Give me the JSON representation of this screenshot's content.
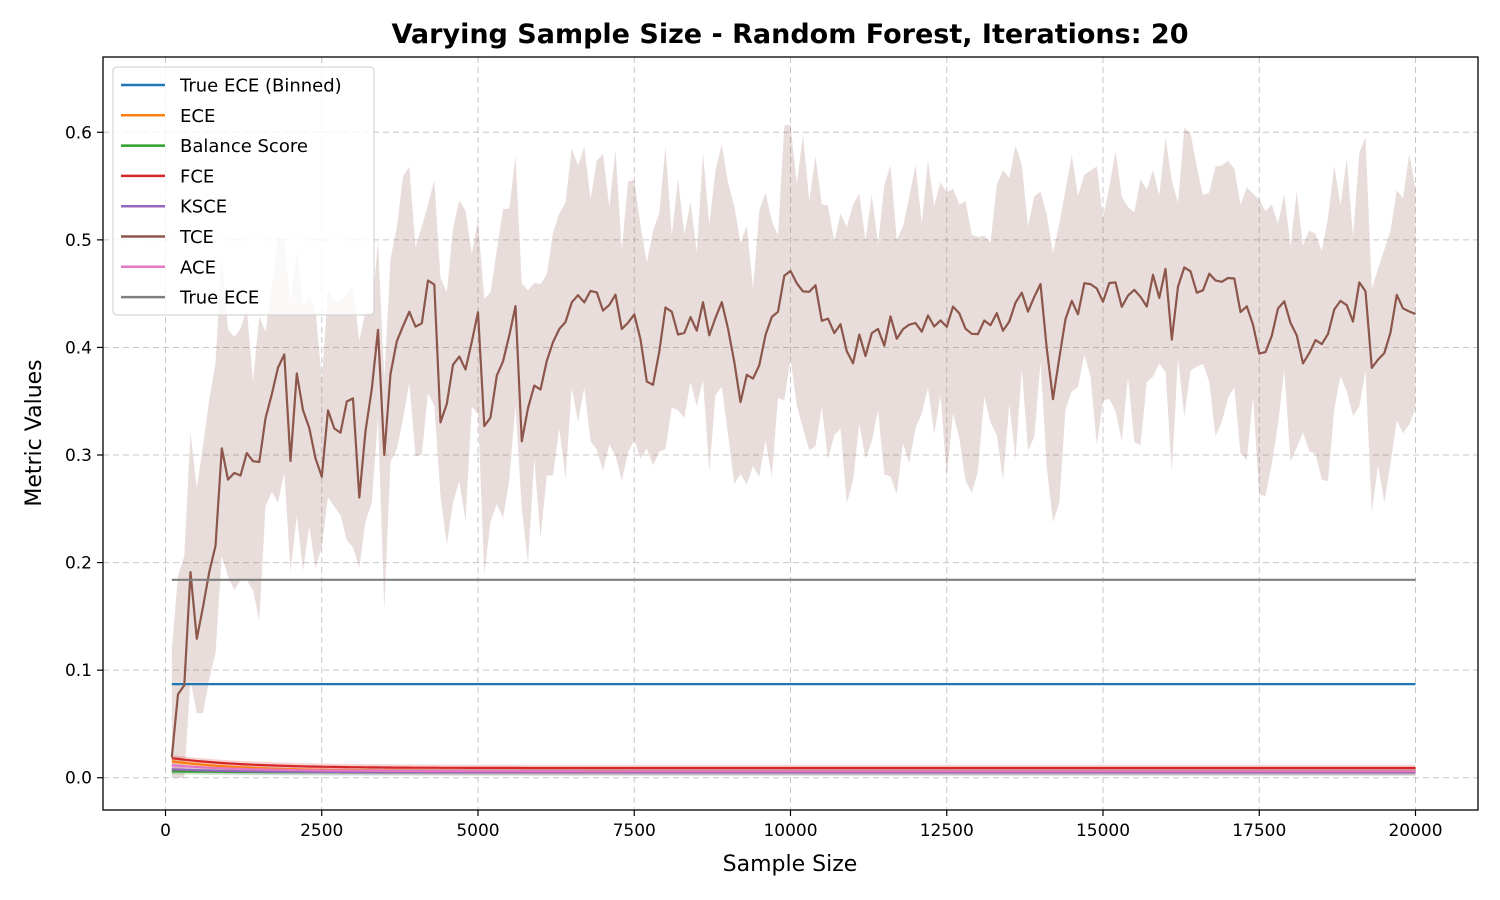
{
  "chart_data": {
    "type": "line",
    "title": "Varying Sample Size - Random Forest, Iterations: 20",
    "xlabel": "Sample Size",
    "ylabel": "Metric Values",
    "xlim": [
      -1000,
      21000
    ],
    "ylim": [
      -0.03,
      0.67
    ],
    "xticks": [
      0,
      2500,
      5000,
      7500,
      10000,
      12500,
      15000,
      17500,
      20000
    ],
    "yticks": [
      0.0,
      0.1,
      0.2,
      0.3,
      0.4,
      0.5,
      0.6
    ],
    "grid": true,
    "legend_position": "top-left",
    "x_start": 100,
    "x_end": 20000,
    "series": [
      {
        "name": "True ECE (Binned)",
        "color": "#1f77b4",
        "constant": 0.087
      },
      {
        "name": "ECE",
        "color": "#ff7f0e",
        "start": 0.016,
        "plateau": 0.006
      },
      {
        "name": "Balance Score",
        "color": "#2ca02c",
        "start": 0.006,
        "plateau": 0.005
      },
      {
        "name": "FCE",
        "color": "#d62728",
        "start": 0.019,
        "plateau": 0.009
      },
      {
        "name": "KSCE",
        "color": "#9467bd",
        "start": 0.008,
        "plateau": 0.005
      },
      {
        "name": "TCE",
        "color": "#8c564b",
        "band": true,
        "anchors": [
          [
            100,
            0.035
          ],
          [
            200,
            0.09
          ],
          [
            300,
            0.1
          ],
          [
            400,
            0.18
          ],
          [
            500,
            0.14
          ],
          [
            600,
            0.17
          ],
          [
            800,
            0.2
          ],
          [
            900,
            0.3
          ],
          [
            1000,
            0.26
          ],
          [
            1200,
            0.28
          ],
          [
            1500,
            0.3
          ],
          [
            1900,
            0.41
          ],
          [
            2000,
            0.28
          ],
          [
            2100,
            0.36
          ],
          [
            2500,
            0.27
          ],
          [
            2600,
            0.33
          ],
          [
            3000,
            0.335
          ],
          [
            3100,
            0.255
          ],
          [
            3400,
            0.41
          ],
          [
            3500,
            0.295
          ],
          [
            3600,
            0.385
          ],
          [
            4300,
            0.46
          ],
          [
            4400,
            0.345
          ],
          [
            5000,
            0.42
          ],
          [
            5100,
            0.315
          ],
          [
            5600,
            0.44
          ],
          [
            5700,
            0.32
          ],
          [
            6300,
            0.435
          ],
          [
            7500,
            0.435
          ],
          [
            7800,
            0.35
          ],
          [
            8000,
            0.42
          ],
          [
            9000,
            0.43
          ],
          [
            9200,
            0.35
          ],
          [
            9900,
            0.46
          ],
          [
            10300,
            0.45
          ],
          [
            11000,
            0.4
          ],
          [
            12000,
            0.43
          ],
          [
            13000,
            0.42
          ],
          [
            14000,
            0.45
          ],
          [
            14200,
            0.365
          ],
          [
            14500,
            0.45
          ],
          [
            15000,
            0.44
          ],
          [
            16000,
            0.46
          ],
          [
            16100,
            0.41
          ],
          [
            16300,
            0.47
          ],
          [
            17000,
            0.465
          ],
          [
            17500,
            0.4
          ],
          [
            18000,
            0.44
          ],
          [
            18200,
            0.39
          ],
          [
            19200,
            0.455
          ],
          [
            19300,
            0.38
          ],
          [
            19700,
            0.445
          ],
          [
            20000,
            0.44
          ]
        ]
      },
      {
        "name": "ACE",
        "color": "#e377c2",
        "start": 0.012,
        "plateau": 0.006
      },
      {
        "name": "True ECE",
        "color": "#7f7f7f",
        "constant": 0.184
      }
    ]
  }
}
